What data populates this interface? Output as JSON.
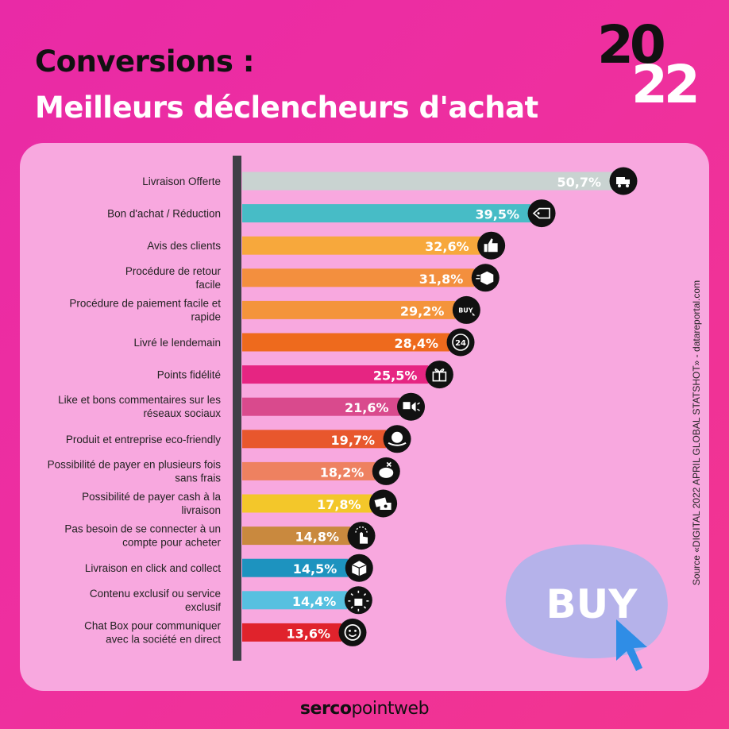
{
  "header": {
    "title_line1": "Conversions :",
    "title_line2": "Meilleurs déclencheurs d'achat",
    "year_top": "20",
    "year_bottom": "22"
  },
  "source": "Source «DIGITAL 2022 APRIL GLOBAL STATSHOT» - datareportal.com",
  "buy_badge": "BUY",
  "footer": {
    "brand_bold": "serco",
    "brand_light": "pointweb"
  },
  "chart_data": {
    "type": "bar",
    "orientation": "horizontal",
    "title": "Meilleurs déclencheurs d'achat",
    "xlabel": "",
    "ylabel": "",
    "xlim": [
      0,
      50.7
    ],
    "categories": [
      [
        "Livraison Offerte"
      ],
      [
        "Bon d'achat / Réduction"
      ],
      [
        "Avis des clients"
      ],
      [
        "Procédure de retour",
        "facile"
      ],
      [
        "Procédure de paiement facile et",
        "rapide"
      ],
      [
        "Livré le lendemain"
      ],
      [
        "Points fidélité"
      ],
      [
        "Like et bons commentaires sur les",
        "réseaux sociaux"
      ],
      [
        "Produit et entreprise eco-friendly"
      ],
      [
        "Possibilité de payer en plusieurs fois",
        "sans frais"
      ],
      [
        "Possibilité de payer cash à la",
        "livraison"
      ],
      [
        "Pas besoin de se connecter à un",
        "compte pour acheter"
      ],
      [
        "Livraison en click and collect"
      ],
      [
        "Contenu exclusif ou service",
        "exclusif"
      ],
      [
        "Chat Box pour communiquer",
        "avec la société en direct"
      ]
    ],
    "values": [
      50.7,
      39.5,
      32.6,
      31.8,
      29.2,
      28.4,
      25.5,
      21.6,
      19.7,
      18.2,
      17.8,
      14.8,
      14.5,
      14.4,
      13.6
    ],
    "value_labels": [
      "50,7%",
      "39,5%",
      "32,6%",
      "31,8%",
      "29,2%",
      "28,4%",
      "25,5%",
      "21,6%",
      "19,7%",
      "18,2%",
      "17,8%",
      "14,8%",
      "14,5%",
      "14,4%",
      "13,6%"
    ],
    "colors": [
      "#c9d3d1",
      "#47bcc6",
      "#f7a83c",
      "#f38f3e",
      "#f4943b",
      "#ee6a1d",
      "#e62582",
      "#d94a8d",
      "#e8572d",
      "#ee8160",
      "#f3c72a",
      "#c9893e",
      "#1d93bf",
      "#57c0e0",
      "#e0232c"
    ],
    "icons": [
      "delivery-truck-icon",
      "discount-tag-icon",
      "thumbs-up-icon",
      "return-box-icon",
      "buy-cursor-icon",
      "24h-icon",
      "gift-icon",
      "social-like-icon",
      "eco-globe-icon",
      "piggy-bank-icon",
      "cash-icon",
      "tap-finger-icon",
      "package-icon",
      "exclusive-star-icon",
      "chat-smile-icon"
    ],
    "icon_text": {
      "buy-cursor-icon": "BUY",
      "24h-icon": "24"
    }
  },
  "colors": {
    "background": "#ec2fa2",
    "panel": "#f8a8df",
    "axis": "#3f3f47",
    "buy_blob": "#b5b2ea",
    "cursor": "#2f8de6"
  }
}
